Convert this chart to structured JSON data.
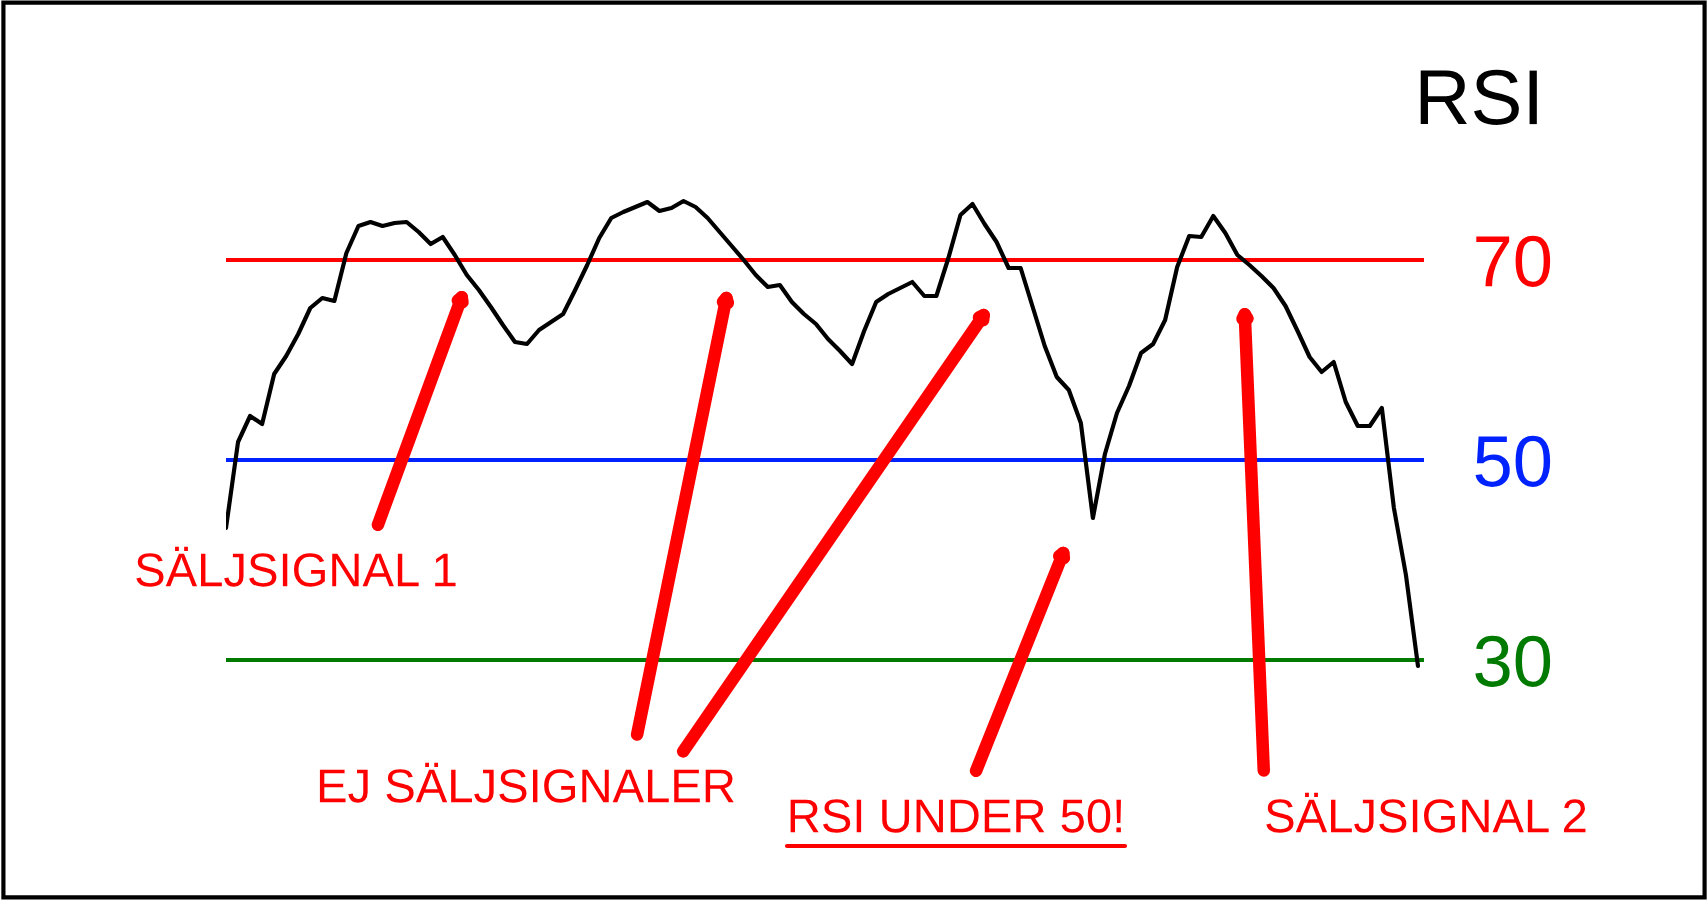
{
  "chart_data": {
    "type": "line",
    "title": "RSI",
    "categories": [
      null,
      null,
      null,
      null,
      null,
      null,
      null,
      null,
      null,
      null,
      null,
      null,
      null,
      null,
      null,
      null,
      null,
      null,
      null,
      null,
      null,
      null,
      null,
      null,
      null,
      null,
      null,
      null,
      null,
      null,
      null,
      null,
      null,
      null,
      null,
      null,
      null,
      null,
      null,
      null,
      null,
      null,
      null,
      null,
      null,
      null,
      null,
      null,
      null,
      null,
      null,
      null,
      null,
      null,
      null,
      null,
      null,
      null,
      null,
      null,
      null,
      null,
      null,
      null,
      null,
      null,
      null,
      null,
      null,
      null,
      null,
      null,
      null,
      null,
      null,
      null,
      null,
      null,
      null,
      null,
      null,
      null,
      null,
      null,
      null,
      null,
      null,
      null,
      null,
      null,
      null,
      null,
      null,
      null,
      null,
      null,
      null,
      null,
      null,
      null
    ],
    "series": [
      {
        "color": "#000000",
        "values": [
          43.2,
          51.8,
          54.4,
          53.6,
          58.6,
          60.4,
          62.6,
          65.2,
          66.2,
          65.9,
          70.7,
          73.4,
          73.8,
          73.4,
          73.7,
          73.8,
          72.8,
          71.6,
          72.3,
          70.5,
          68.5,
          67.0,
          65.3,
          63.5,
          61.8,
          61.6,
          63.0,
          63.8,
          64.6,
          67.0,
          69.5,
          72.2,
          74.2,
          74.8,
          75.3,
          75.8,
          74.9,
          75.2,
          75.9,
          75.3,
          74.2,
          72.8,
          71.4,
          70.0,
          68.5,
          67.3,
          67.5,
          65.8,
          64.6,
          63.6,
          62.1,
          60.9,
          59.6,
          62.9,
          65.8,
          66.6,
          67.2,
          67.8,
          66.4,
          66.4,
          70.2,
          74.5,
          75.6,
          73.6,
          71.8,
          69.2,
          69.2,
          65.3,
          61.4,
          58.3,
          57.0,
          53.7,
          44.2,
          50.6,
          54.7,
          57.4,
          60.7,
          61.6,
          64.0,
          69.3,
          72.4,
          72.3,
          74.4,
          72.7,
          70.5,
          69.5,
          68.4,
          67.2,
          65.4,
          62.9,
          60.3,
          58.8,
          59.8,
          55.8,
          53.4,
          53.4,
          55.2,
          45.2,
          38.5,
          29.4
        ]
      }
    ],
    "ylim": [
      6,
      96
    ],
    "yticks": [
      30,
      50,
      70
    ],
    "tick_labels": "y",
    "legend": false,
    "marker": "none",
    "line_style": "solid",
    "ref_lines": [
      {
        "axis": "y",
        "value": 70,
        "color": "#ff0000"
      },
      {
        "axis": "y",
        "value": 50,
        "color": "#0022ff"
      },
      {
        "axis": "y",
        "value": 30,
        "color": "#007a00"
      }
    ],
    "annotations": [
      "SÄLJSIGNAL 1",
      "EJ SÄLJSIGNALER",
      "RSI UNDER 50!",
      "SÄLJSIGNAL 2"
    ]
  }
}
